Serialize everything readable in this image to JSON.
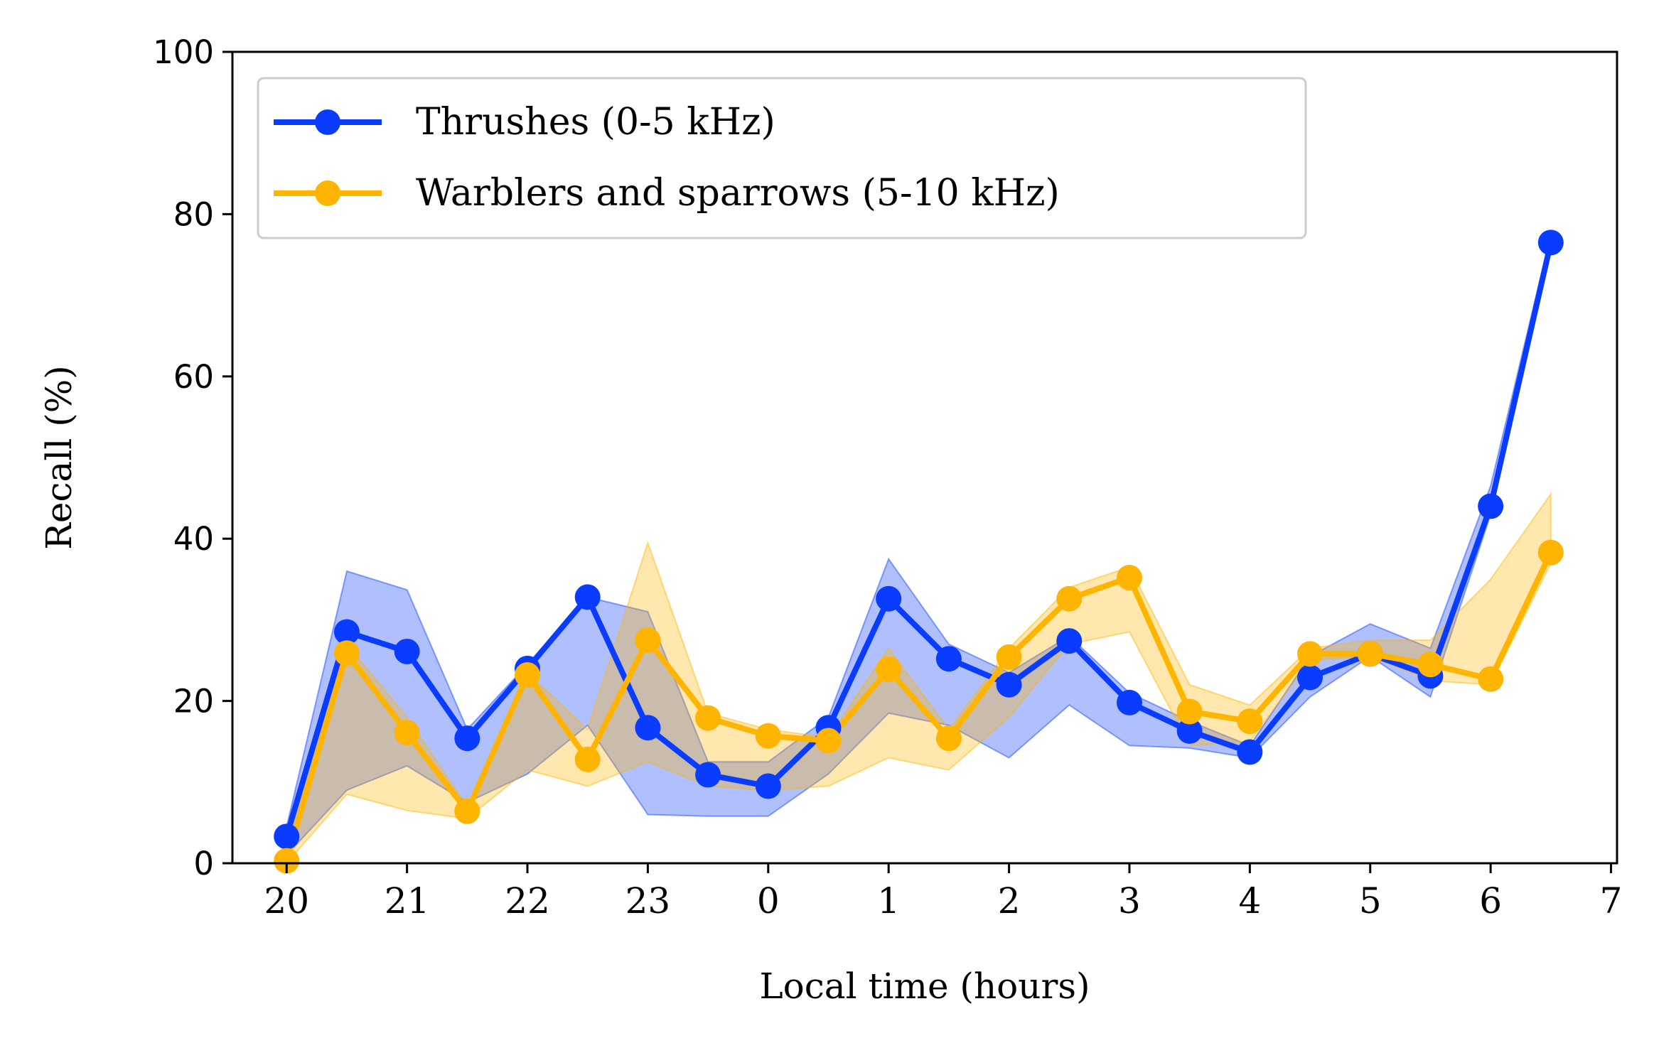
{
  "chart_data": {
    "type": "line",
    "xlabel": "Local time (hours)",
    "ylabel": "Recall (%)",
    "xlim": [
      -0.45,
      11.05
    ],
    "ylim": [
      0,
      100
    ],
    "x_ticks": [
      0,
      1,
      2,
      3,
      4,
      5,
      6,
      7,
      8,
      9,
      10,
      11
    ],
    "x_tick_labels": [
      "20",
      "21",
      "22",
      "23",
      "0",
      "1",
      "2",
      "3",
      "4",
      "5",
      "6",
      "7"
    ],
    "y_ticks": [
      0,
      20,
      40,
      60,
      80,
      100
    ],
    "y_tick_labels": [
      "0",
      "20",
      "40",
      "60",
      "80",
      "100"
    ],
    "x": [
      0,
      0.5,
      1,
      1.5,
      2,
      2.5,
      3,
      3.5,
      4,
      4.5,
      5,
      5.5,
      6,
      6.5,
      7,
      7.5,
      8,
      8.5,
      9,
      9.5,
      10,
      10.5
    ],
    "series": [
      {
        "name": "Thrushes (0-5 kHz)",
        "color": "#0a3cff",
        "values": [
          3.3,
          28.5,
          26.1,
          15.4,
          24.0,
          32.8,
          16.7,
          10.9,
          9.5,
          16.7,
          32.6,
          25.2,
          22.0,
          27.4,
          19.8,
          16.3,
          13.7,
          22.9,
          25.8,
          23.1,
          44.0,
          76.5
        ],
        "band_low": [
          1.0,
          9.0,
          12.0,
          7.5,
          11.0,
          17.0,
          6.0,
          5.8,
          5.8,
          11.0,
          18.5,
          17.0,
          13.0,
          19.5,
          14.5,
          14.2,
          13.0,
          20.5,
          25.5,
          20.5,
          43.0,
          76.0
        ],
        "band_high": [
          4.5,
          36.0,
          33.7,
          16.5,
          24.5,
          32.8,
          31.0,
          12.5,
          12.5,
          18.0,
          37.5,
          27.0,
          23.5,
          28.0,
          21.0,
          17.5,
          14.5,
          25.5,
          29.5,
          26.5,
          46.5,
          77.5
        ]
      },
      {
        "name": "Warblers and sparrows (5-10 kHz)",
        "color": "#ffb400",
        "values": [
          0.3,
          25.9,
          16.1,
          6.4,
          23.2,
          12.8,
          27.5,
          17.9,
          15.7,
          15.1,
          23.9,
          15.4,
          25.4,
          32.6,
          35.2,
          18.7,
          17.5,
          25.8,
          25.8,
          24.5,
          22.7,
          38.3
        ],
        "band_low": [
          0.0,
          8.5,
          6.5,
          5.5,
          11.5,
          9.5,
          12.5,
          9.5,
          9.0,
          9.5,
          13.0,
          11.5,
          18.0,
          27.0,
          28.5,
          14.5,
          15.0,
          25.0,
          25.5,
          22.5,
          22.0,
          37.0
        ],
        "band_high": [
          1.5,
          27.0,
          18.0,
          7.0,
          23.5,
          16.5,
          39.5,
          18.5,
          16.5,
          15.5,
          26.5,
          16.5,
          26.5,
          34.0,
          36.5,
          22.0,
          19.5,
          26.5,
          27.5,
          27.5,
          35.0,
          45.5
        ]
      }
    ],
    "legend_position": "top-left",
    "grid": false
  }
}
